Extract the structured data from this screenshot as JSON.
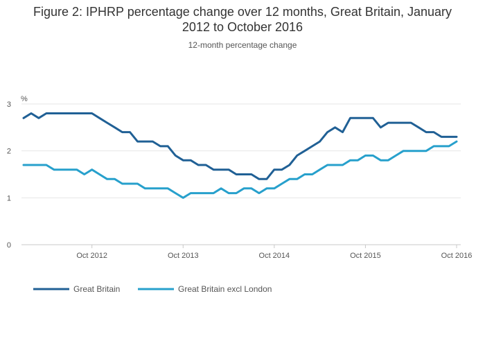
{
  "chart_data": {
    "type": "line",
    "title_line1": "Figure 2: IPHRP percentage change over 12 months, Great Britain, January",
    "title_line2": "2012 to October 2016",
    "subtitle": "12-month percentage change",
    "ylabel": "%",
    "xlabel": "",
    "ylim": [
      0,
      3
    ],
    "yticks": [
      0,
      1,
      2,
      3
    ],
    "grid": true,
    "legend_position": "bottom-left",
    "x_start": "2012-01",
    "x_end": "2016-10",
    "x_ticks": [
      {
        "label": "Oct 2012",
        "month": "2012-10"
      },
      {
        "label": "Oct 2013",
        "month": "2013-10"
      },
      {
        "label": "Oct 2014",
        "month": "2014-10"
      },
      {
        "label": "Oct 2015",
        "month": "2015-10"
      },
      {
        "label": "Oct 2016",
        "month": "2016-10"
      }
    ],
    "series": [
      {
        "name": "Great Britain",
        "color": "#206095",
        "values": [
          2.7,
          2.8,
          2.7,
          2.8,
          2.8,
          2.8,
          2.8,
          2.8,
          2.8,
          2.8,
          2.7,
          2.6,
          2.5,
          2.4,
          2.4,
          2.2,
          2.2,
          2.2,
          2.1,
          2.1,
          1.9,
          1.8,
          1.8,
          1.7,
          1.7,
          1.6,
          1.6,
          1.6,
          1.5,
          1.5,
          1.5,
          1.4,
          1.4,
          1.6,
          1.6,
          1.7,
          1.9,
          2.0,
          2.1,
          2.2,
          2.4,
          2.5,
          2.4,
          2.7,
          2.7,
          2.7,
          2.7,
          2.5,
          2.6,
          2.6,
          2.6,
          2.6,
          2.5,
          2.4,
          2.4,
          2.3,
          2.3,
          2.3
        ]
      },
      {
        "name": "Great Britain excl London",
        "color": "#27a0cc",
        "values": [
          1.7,
          1.7,
          1.7,
          1.7,
          1.6,
          1.6,
          1.6,
          1.6,
          1.5,
          1.6,
          1.5,
          1.4,
          1.4,
          1.3,
          1.3,
          1.3,
          1.2,
          1.2,
          1.2,
          1.2,
          1.1,
          1.0,
          1.1,
          1.1,
          1.1,
          1.1,
          1.2,
          1.1,
          1.1,
          1.2,
          1.2,
          1.1,
          1.2,
          1.2,
          1.3,
          1.4,
          1.4,
          1.5,
          1.5,
          1.6,
          1.7,
          1.7,
          1.7,
          1.8,
          1.8,
          1.9,
          1.9,
          1.8,
          1.8,
          1.9,
          2.0,
          2.0,
          2.0,
          2.0,
          2.1,
          2.1,
          2.1,
          2.2
        ]
      }
    ]
  }
}
